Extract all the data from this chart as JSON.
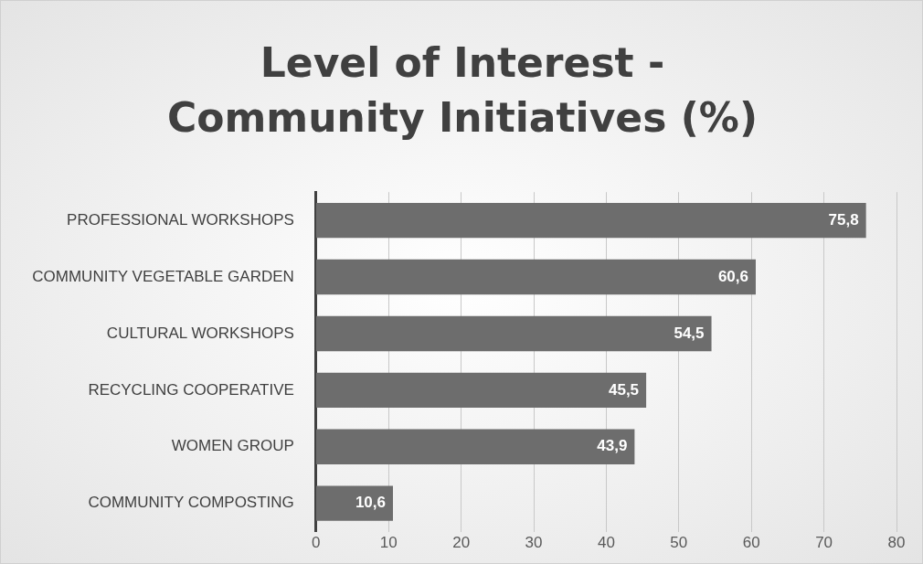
{
  "chart_data": {
    "type": "bar",
    "orientation": "horizontal",
    "title": "Level of Interest - Community Initiatives (%)",
    "categories": [
      "PROFESSIONAL WORKSHOPS",
      "COMMUNITY VEGETABLE GARDEN",
      "CULTURAL WORKSHOPS",
      "RECYCLING COOPERATIVE",
      "WOMEN GROUP",
      "COMMUNITY COMPOSTING"
    ],
    "values": [
      75.8,
      60.6,
      54.5,
      45.5,
      43.9,
      10.6
    ],
    "value_labels": [
      "75,8",
      "60,6",
      "54,5",
      "45,5",
      "43,9",
      "10,6"
    ],
    "color": "#6d6d6d",
    "xlim": [
      0,
      80
    ],
    "xticks": [
      0,
      10,
      20,
      30,
      40,
      50,
      60,
      70,
      80
    ],
    "grid": "x",
    "legend": false
  }
}
